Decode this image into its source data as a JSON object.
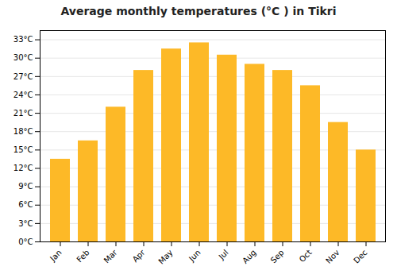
{
  "chart_data": {
    "type": "bar",
    "title": "Average monthly temperatures (°C ) in Tikri",
    "categories": [
      "Jan",
      "Feb",
      "Mar",
      "Apr",
      "May",
      "Jun",
      "Jul",
      "Aug",
      "Sep",
      "Oct",
      "Nov",
      "Dec"
    ],
    "values": [
      13.5,
      16.5,
      22.0,
      28.0,
      31.5,
      32.5,
      30.5,
      29.0,
      28.0,
      25.5,
      19.5,
      15.0
    ],
    "color": "#FDB927",
    "ylim": [
      0,
      34.5
    ],
    "yticks": [
      {
        "value": 0,
        "label": "0°C"
      },
      {
        "value": 3,
        "label": "3°C"
      },
      {
        "value": 6,
        "label": "6°C"
      },
      {
        "value": 9,
        "label": "9°C"
      },
      {
        "value": 12,
        "label": "12°C"
      },
      {
        "value": 15,
        "label": "15°C"
      },
      {
        "value": 18,
        "label": "18°C"
      },
      {
        "value": 21,
        "label": "21°C"
      },
      {
        "value": 24,
        "label": "24°C"
      },
      {
        "value": 27,
        "label": "27°C"
      },
      {
        "value": 30,
        "label": "30°C"
      },
      {
        "value": 33,
        "label": "33°C"
      }
    ],
    "grid": true
  }
}
